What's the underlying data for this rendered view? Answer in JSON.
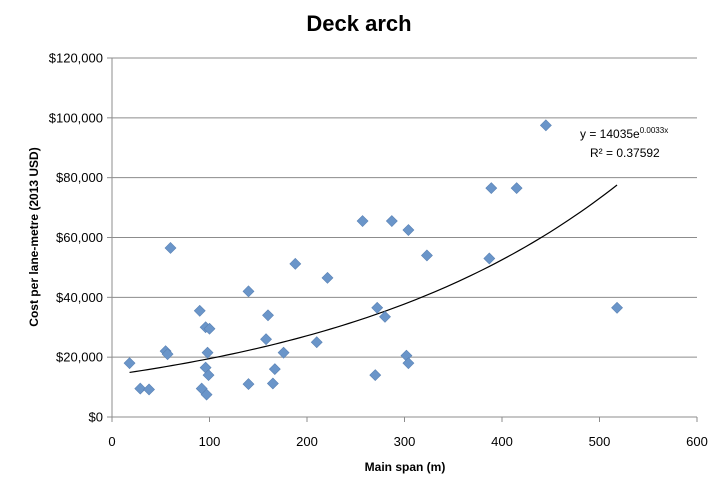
{
  "chart_data": {
    "type": "scatter",
    "title": "Deck arch",
    "xlabel": "Main span (m)",
    "ylabel": "Cost per lane-metre (2013 USD)",
    "xlim": [
      0,
      600
    ],
    "ylim": [
      0,
      120000
    ],
    "x_ticks": [
      0,
      100,
      200,
      300,
      400,
      500,
      600
    ],
    "x_tick_labels": [
      "0",
      "100",
      "200",
      "300",
      "400",
      "500",
      "600"
    ],
    "y_ticks": [
      0,
      20000,
      40000,
      60000,
      80000,
      100000,
      120000
    ],
    "y_tick_labels": [
      "$0",
      "$20,000",
      "$40,000",
      "$60,000",
      "$80,000",
      "$100,000",
      "$120,000"
    ],
    "grid": "horizontal",
    "legend": "none",
    "marker_color": "#6a95c9",
    "series": [
      {
        "points": [
          [
            18,
            18000
          ],
          [
            29,
            9500
          ],
          [
            38,
            9200
          ],
          [
            55,
            22000
          ],
          [
            57,
            21000
          ],
          [
            60,
            56500
          ],
          [
            90,
            35500
          ],
          [
            92,
            9500
          ],
          [
            96,
            30000
          ],
          [
            96,
            16500
          ],
          [
            97,
            7500
          ],
          [
            98,
            21500
          ],
          [
            99,
            14000
          ],
          [
            100,
            29500
          ],
          [
            140,
            42000
          ],
          [
            140,
            11000
          ],
          [
            158,
            26000
          ],
          [
            160,
            34000
          ],
          [
            165,
            11200
          ],
          [
            167,
            16000
          ],
          [
            176,
            21500
          ],
          [
            188,
            51200
          ],
          [
            210,
            25000
          ],
          [
            221,
            46500
          ],
          [
            257,
            65500
          ],
          [
            270,
            14000
          ],
          [
            272,
            36500
          ],
          [
            280,
            33500
          ],
          [
            287,
            65500
          ],
          [
            302,
            20500
          ],
          [
            304,
            62500
          ],
          [
            304,
            18000
          ],
          [
            323,
            54000
          ],
          [
            387,
            53000
          ],
          [
            389,
            76500
          ],
          [
            415,
            76500
          ],
          [
            445,
            97500
          ],
          [
            518,
            36500
          ]
        ]
      }
    ],
    "trendline": {
      "type": "exponential",
      "a": 14035,
      "b": 0.0033,
      "x_range": [
        18,
        518
      ],
      "color": "#000000",
      "equation_prefix": "y = 14035e",
      "equation_exponent": "0.0033x",
      "r2_label": "R² = 0.37592"
    }
  }
}
